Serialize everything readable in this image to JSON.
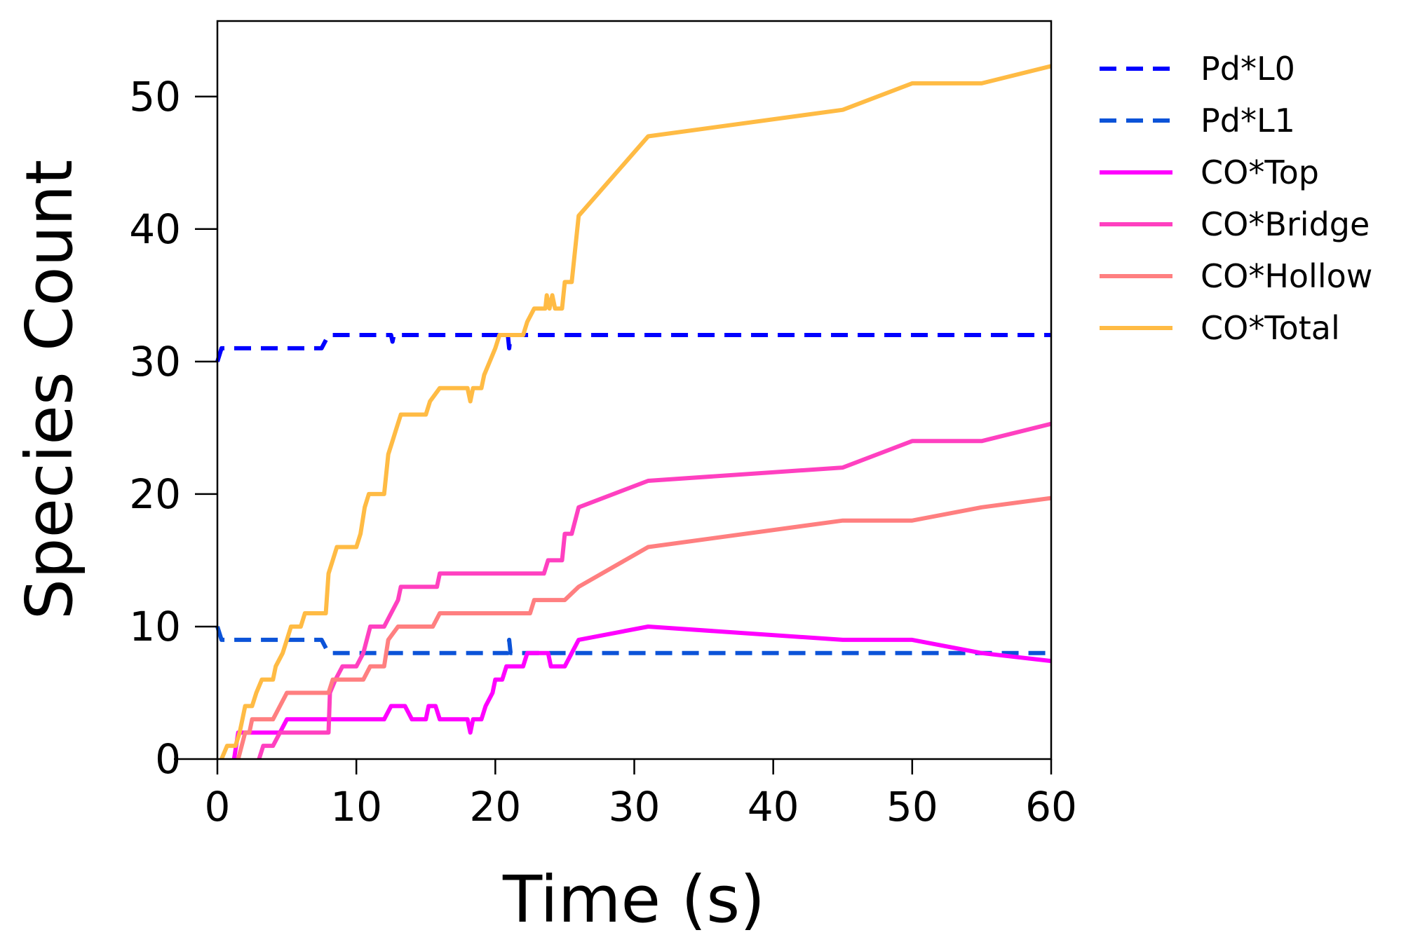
{
  "chart_data": {
    "type": "line",
    "title": "",
    "xlabel": "Time (s)",
    "ylabel": "Species Count",
    "xlim": [
      0,
      60
    ],
    "ylim": [
      0,
      55.7
    ],
    "xticks": [
      "0",
      "10",
      "20",
      "30",
      "40",
      "50",
      "60"
    ],
    "yticks": [
      "0",
      "10",
      "20",
      "30",
      "40",
      "50"
    ],
    "grid": false,
    "legend_position": "outside-right",
    "series": [
      {
        "name": "Pd*L0",
        "color": "#0000ff",
        "dash": true,
        "points": [
          [
            0,
            30
          ],
          [
            0.3,
            31
          ],
          [
            7.5,
            31
          ],
          [
            8,
            32
          ],
          [
            12.5,
            32
          ],
          [
            12.6,
            31.5
          ],
          [
            12.7,
            32
          ],
          [
            20.9,
            32
          ],
          [
            21,
            31
          ],
          [
            21.1,
            32
          ],
          [
            60,
            32
          ]
        ]
      },
      {
        "name": "Pd*L1",
        "color": "#0c53d8",
        "dash": true,
        "points": [
          [
            0,
            10
          ],
          [
            0.3,
            9
          ],
          [
            7.5,
            9
          ],
          [
            8,
            8
          ],
          [
            20.9,
            8
          ],
          [
            21,
            9
          ],
          [
            21.1,
            8
          ],
          [
            60,
            8
          ]
        ]
      },
      {
        "name": "CO*Top",
        "color": "#ff00ff",
        "dash": false,
        "points": [
          [
            1.2,
            0
          ],
          [
            1.5,
            2
          ],
          [
            3.5,
            2
          ],
          [
            4.5,
            2
          ],
          [
            5,
            3
          ],
          [
            12,
            3
          ],
          [
            12.5,
            4
          ],
          [
            13.5,
            4
          ],
          [
            14,
            3
          ],
          [
            15,
            3
          ],
          [
            15.2,
            4
          ],
          [
            15.7,
            4
          ],
          [
            16,
            3
          ],
          [
            18,
            3
          ],
          [
            18.2,
            2
          ],
          [
            18.4,
            3
          ],
          [
            19,
            3
          ],
          [
            19.3,
            4
          ],
          [
            19.8,
            5
          ],
          [
            20,
            6
          ],
          [
            20.5,
            6
          ],
          [
            20.8,
            7
          ],
          [
            22,
            7
          ],
          [
            22.3,
            8
          ],
          [
            23.8,
            8
          ],
          [
            24,
            7
          ],
          [
            25,
            7
          ],
          [
            25.5,
            8
          ],
          [
            26,
            9
          ],
          [
            31,
            10
          ],
          [
            45,
            9
          ],
          [
            50,
            9
          ],
          [
            55,
            8
          ],
          [
            60,
            7.4
          ]
        ]
      },
      {
        "name": "CO*Bridge",
        "color": "#ff40c0",
        "dash": false,
        "points": [
          [
            3,
            0
          ],
          [
            3.3,
            1
          ],
          [
            4,
            1
          ],
          [
            4.5,
            2
          ],
          [
            8,
            2
          ],
          [
            8.1,
            5
          ],
          [
            8.5,
            6
          ],
          [
            9,
            7
          ],
          [
            10,
            7
          ],
          [
            10.5,
            8
          ],
          [
            11,
            10
          ],
          [
            12,
            10
          ],
          [
            12.5,
            11
          ],
          [
            13,
            12
          ],
          [
            13.2,
            13
          ],
          [
            15.8,
            13
          ],
          [
            16,
            14
          ],
          [
            23.5,
            14
          ],
          [
            23.8,
            15
          ],
          [
            24.8,
            15
          ],
          [
            25,
            17
          ],
          [
            25.5,
            17
          ],
          [
            26,
            19
          ],
          [
            31,
            21
          ],
          [
            45,
            22
          ],
          [
            50,
            24
          ],
          [
            55,
            24
          ],
          [
            60,
            25.3
          ]
        ]
      },
      {
        "name": "CO*Hollow",
        "color": "#ff7f80",
        "dash": false,
        "points": [
          [
            1.5,
            0
          ],
          [
            2,
            2
          ],
          [
            2.3,
            2
          ],
          [
            2.5,
            3
          ],
          [
            4,
            3
          ],
          [
            4.5,
            4
          ],
          [
            5,
            5
          ],
          [
            8,
            5
          ],
          [
            8.3,
            6
          ],
          [
            10.5,
            6
          ],
          [
            11,
            7
          ],
          [
            12,
            7
          ],
          [
            12.3,
            9
          ],
          [
            13,
            10
          ],
          [
            15.5,
            10
          ],
          [
            16,
            11
          ],
          [
            22.5,
            11
          ],
          [
            22.8,
            12
          ],
          [
            25,
            12
          ],
          [
            26,
            13
          ],
          [
            31,
            16
          ],
          [
            45,
            18
          ],
          [
            50,
            18
          ],
          [
            55,
            19
          ],
          [
            60,
            19.7
          ]
        ]
      },
      {
        "name": "CO*Total",
        "color": "#ffbb44",
        "dash": false,
        "points": [
          [
            0.3,
            0
          ],
          [
            0.7,
            1
          ],
          [
            1.3,
            1
          ],
          [
            1.6,
            2
          ],
          [
            1.8,
            3
          ],
          [
            2,
            4
          ],
          [
            2.5,
            4
          ],
          [
            2.8,
            5
          ],
          [
            3.2,
            6
          ],
          [
            4,
            6
          ],
          [
            4.2,
            7
          ],
          [
            4.7,
            8
          ],
          [
            5,
            9
          ],
          [
            5.3,
            10
          ],
          [
            6,
            10
          ],
          [
            6.3,
            11
          ],
          [
            7.8,
            11
          ],
          [
            8,
            14
          ],
          [
            8.3,
            15
          ],
          [
            8.6,
            16
          ],
          [
            10,
            16
          ],
          [
            10.3,
            17
          ],
          [
            10.6,
            19
          ],
          [
            10.9,
            20
          ],
          [
            12,
            20
          ],
          [
            12.3,
            23
          ],
          [
            12.6,
            24
          ],
          [
            12.9,
            25
          ],
          [
            13.2,
            26
          ],
          [
            15,
            26
          ],
          [
            15.3,
            27
          ],
          [
            16,
            28
          ],
          [
            18,
            28
          ],
          [
            18.2,
            27
          ],
          [
            18.4,
            28
          ],
          [
            19,
            28
          ],
          [
            19.2,
            29
          ],
          [
            19.6,
            30
          ],
          [
            20,
            31
          ],
          [
            20.3,
            32
          ],
          [
            22,
            32
          ],
          [
            22.3,
            33
          ],
          [
            22.8,
            34
          ],
          [
            23.6,
            34
          ],
          [
            23.7,
            35
          ],
          [
            23.9,
            34
          ],
          [
            24.1,
            35
          ],
          [
            24.3,
            34
          ],
          [
            24.8,
            34
          ],
          [
            25,
            36
          ],
          [
            25.5,
            36
          ],
          [
            26,
            41
          ],
          [
            31,
            47
          ],
          [
            45,
            49
          ],
          [
            50,
            51
          ],
          [
            55,
            51
          ],
          [
            60,
            52.3
          ]
        ]
      }
    ]
  }
}
